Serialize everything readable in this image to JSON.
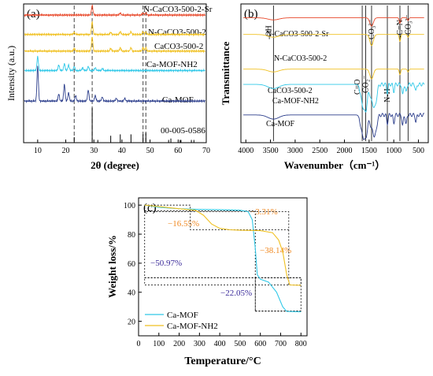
{
  "colors": {
    "frame": "#000000",
    "dash": "#444444",
    "red": "#e8482a",
    "yellow": "#f0c020",
    "cyan": "#30c8e8",
    "navy": "#2c3e8c",
    "orange": "#f08a24",
    "purple": "#3a2a9a"
  },
  "chart_data": [
    {
      "panel": "(a)",
      "type": "line",
      "xlabel": "2θ (degree)",
      "ylabel": "Intensity (a.u.)",
      "xlim": [
        5,
        70
      ],
      "xticks": [
        10,
        20,
        30,
        40,
        50,
        60,
        70
      ],
      "guide_lines_x": [
        23.0,
        29.4,
        47.5,
        48.5
      ],
      "series": [
        {
          "name": "N-CaCO3-500-2-Sr",
          "color": "red",
          "offset": 0.92,
          "peaks": [
            [
              29.4,
              0.07
            ],
            [
              39.4,
              0.015
            ],
            [
              47.5,
              0.015
            ],
            [
              48.5,
              0.015
            ]
          ]
        },
        {
          "name": "N-CaCO3-500-2",
          "color": "yellow",
          "offset": 0.78,
          "peaks": [
            [
              23.0,
              0.015
            ],
            [
              29.4,
              0.09
            ],
            [
              36.0,
              0.015
            ],
            [
              39.4,
              0.02
            ],
            [
              43.2,
              0.02
            ],
            [
              47.5,
              0.02
            ],
            [
              48.5,
              0.02
            ]
          ]
        },
        {
          "name": "CaCO3-500-2",
          "color": "yellow",
          "offset": 0.66,
          "peaks": [
            [
              23.0,
              0.02
            ],
            [
              29.4,
              0.1
            ],
            [
              36.0,
              0.02
            ],
            [
              39.4,
              0.025
            ],
            [
              43.2,
              0.025
            ],
            [
              47.5,
              0.025
            ],
            [
              48.5,
              0.025
            ]
          ]
        },
        {
          "name": "Ca-MOF-NH2",
          "color": "cyan",
          "offset": 0.52,
          "peaks": [
            [
              10.0,
              0.1
            ],
            [
              17.5,
              0.04
            ],
            [
              19.5,
              0.05
            ],
            [
              21.0,
              0.04
            ],
            [
              23.0,
              0.03
            ],
            [
              26.0,
              0.02
            ],
            [
              28.0,
              0.03
            ],
            [
              30.5,
              0.02
            ],
            [
              33.0,
              0.015
            ]
          ]
        },
        {
          "name": "Ca-MOF",
          "color": "navy",
          "offset": 0.3,
          "peaks": [
            [
              10.0,
              0.25
            ],
            [
              17.5,
              0.05
            ],
            [
              19.5,
              0.12
            ],
            [
              21.0,
              0.06
            ],
            [
              23.5,
              0.04
            ],
            [
              28.0,
              0.08
            ],
            [
              30.5,
              0.04
            ],
            [
              33.0,
              0.03
            ],
            [
              38.0,
              0.02
            ],
            [
              41.0,
              0.02
            ]
          ]
        }
      ],
      "reference": {
        "name": "00-005-0586",
        "sticks": [
          [
            23.0,
            0.04
          ],
          [
            29.4,
            0.25
          ],
          [
            31.4,
            0.02
          ],
          [
            36.0,
            0.05
          ],
          [
            39.4,
            0.06
          ],
          [
            43.2,
            0.06
          ],
          [
            47.5,
            0.06
          ],
          [
            48.5,
            0.07
          ],
          [
            56.6,
            0.02
          ],
          [
            57.4,
            0.03
          ],
          [
            60.7,
            0.02
          ],
          [
            61.0,
            0.02
          ],
          [
            64.7,
            0.02
          ],
          [
            65.6,
            0.02
          ]
        ]
      }
    },
    {
      "panel": "(b)",
      "type": "line",
      "xlabel": "Wavenumber（cm⁻¹）",
      "ylabel": "Transmittance",
      "xlim": [
        4000,
        400
      ],
      "xticks": [
        4000,
        3500,
        3000,
        2500,
        2000,
        1500,
        1000,
        500
      ],
      "guide_lines_x": [
        3440,
        1640,
        1570,
        1450,
        1130,
        875,
        710
      ],
      "band_labels": [
        "-OH",
        "CO₃²⁻",
        "-C=N",
        "CO₃²⁻",
        "C=O",
        "CO₂⁻",
        "N-H"
      ],
      "series": [
        {
          "name": "N-CaCO3-500-2-Sr",
          "color": "red",
          "offset": 0.9,
          "bands": [
            [
              3440,
              0.015
            ],
            [
              1450,
              0.06
            ],
            [
              875,
              0.04
            ],
            [
              710,
              0.02
            ]
          ]
        },
        {
          "name": "N-CaCO3-500-2",
          "color": "yellow",
          "offset": 0.78,
          "bands": [
            [
              3440,
              0.02
            ],
            [
              1450,
              0.08
            ],
            [
              875,
              0.05
            ],
            [
              710,
              0.02
            ]
          ]
        },
        {
          "name": "CaCO3-500-2",
          "color": "yellow",
          "offset": 0.53,
          "bands": [
            [
              3440,
              0.02
            ],
            [
              1450,
              0.07
            ],
            [
              875,
              0.04
            ],
            [
              710,
              0.02
            ]
          ]
        },
        {
          "name": "Ca-MOF-NH2",
          "color": "cyan",
          "offset": 0.42,
          "bands": [
            [
              3440,
              0.03
            ],
            [
              1640,
              0.12
            ],
            [
              1570,
              0.18
            ],
            [
              1450,
              0.1
            ],
            [
              1380,
              0.15
            ],
            [
              1130,
              0.06
            ],
            [
              1000,
              0.05
            ],
            [
              820,
              0.08
            ],
            [
              750,
              0.06
            ],
            [
              550,
              0.05
            ]
          ]
        },
        {
          "name": "Ca-MOF",
          "color": "navy",
          "offset": 0.2,
          "bands": [
            [
              3440,
              0.03
            ],
            [
              1640,
              0.12
            ],
            [
              1570,
              0.16
            ],
            [
              1450,
              0.08
            ],
            [
              1380,
              0.14
            ],
            [
              1130,
              0.06
            ],
            [
              1000,
              0.06
            ],
            [
              820,
              0.08
            ],
            [
              750,
              0.07
            ],
            [
              550,
              0.05
            ]
          ]
        }
      ]
    },
    {
      "panel": "(c)",
      "type": "line",
      "xlabel": "Temperature/°C",
      "ylabel": "Weight loss/%",
      "xlim": [
        0,
        830
      ],
      "ylim": [
        10,
        105
      ],
      "xticks": [
        0,
        100,
        200,
        300,
        400,
        500,
        600,
        700,
        800
      ],
      "yticks": [
        20,
        40,
        60,
        80,
        100
      ],
      "series": [
        {
          "name": "Ca-MOF",
          "color": "cyan",
          "points": [
            [
              30,
              100
            ],
            [
              100,
              98.5
            ],
            [
              200,
              97.5
            ],
            [
              300,
              97
            ],
            [
              400,
              96.8
            ],
            [
              500,
              96.5
            ],
            [
              540,
              95.5
            ],
            [
              560,
              90
            ],
            [
              575,
              70
            ],
            [
              585,
              52
            ],
            [
              600,
              49
            ],
            [
              640,
              47
            ],
            [
              680,
              40
            ],
            [
              710,
              30
            ],
            [
              730,
              26.8
            ],
            [
              800,
              26.5
            ]
          ]
        },
        {
          "name": "Ca-MOF-NH2",
          "color": "yellow",
          "points": [
            [
              30,
              100
            ],
            [
              100,
              99
            ],
            [
              200,
              97.5
            ],
            [
              280,
              96.5
            ],
            [
              320,
              93
            ],
            [
              360,
              87
            ],
            [
              400,
              84
            ],
            [
              450,
              83
            ],
            [
              500,
              82.7
            ],
            [
              600,
              82.4
            ],
            [
              660,
              81
            ],
            [
              690,
              76
            ],
            [
              710,
              68
            ],
            [
              730,
              52
            ],
            [
              745,
              45
            ],
            [
              800,
              44.8
            ]
          ]
        }
      ],
      "annotations": [
        "−3.31%",
        "−16.55%",
        "−50.97%",
        "−38.14%",
        "−22.05%"
      ]
    }
  ],
  "panel_a": {
    "label": "(a)",
    "xlabel": "2θ (degree)",
    "ylabel": "Intensity (a.u.)",
    "ticks": [
      "10",
      "20",
      "30",
      "40",
      "50",
      "60",
      "70"
    ],
    "series_labels": [
      "N-CaCO3-500-2-Sr",
      "N-CaCO3-500-2",
      "CaCO3-500-2",
      "Ca-MOF-NH2",
      "Ca-MOF",
      "00-005-0586"
    ]
  },
  "panel_b": {
    "label": "(b)",
    "xlabel": "Wavenumber（cm⁻¹）",
    "ylabel": "Transmittance",
    "ticks": [
      "4000",
      "3500",
      "3000",
      "2500",
      "2000",
      "1500",
      "1000",
      "500"
    ],
    "series_labels": [
      "N-CaCO3-500-2-Sr",
      "N-CaCO3-500-2",
      "CaCO3-500-2",
      "Ca-MOF-NH2",
      "Ca-MOF"
    ],
    "band_labels": [
      "-OH",
      "CO₃²⁻",
      "-C=N",
      "CO₃²⁻",
      "C=O",
      "CO₂⁻",
      "N-H"
    ]
  },
  "panel_c": {
    "label": "(c)",
    "xlabel": "Temperature/°C",
    "ylabel": "Weight loss/%",
    "xticks": [
      "0",
      "100",
      "200",
      "300",
      "400",
      "500",
      "600",
      "700",
      "800"
    ],
    "yticks": [
      "20",
      "40",
      "60",
      "80",
      "100"
    ],
    "legend": [
      "Ca-MOF",
      "Ca-MOF-NH2"
    ],
    "annotations": [
      "−3.31%",
      "−16.55%",
      "−50.97%",
      "−38.14%",
      "−22.05%"
    ]
  }
}
